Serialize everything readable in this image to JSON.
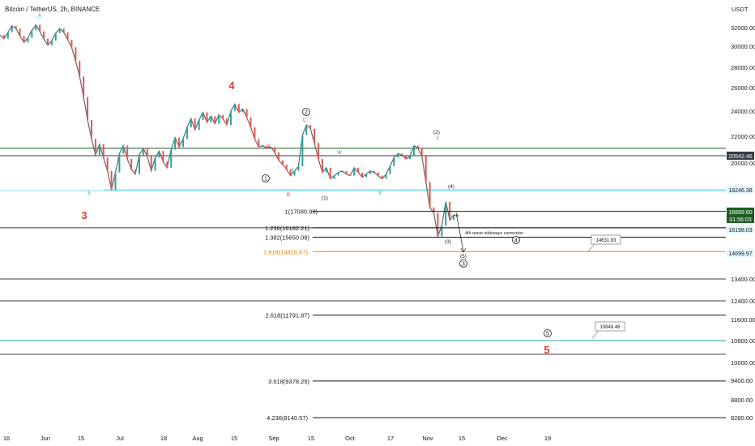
{
  "chart_data": {
    "type": "line",
    "title": "Bitcoin / TetherUS, 2h, BINANCE",
    "price_scale_label": "USDT",
    "x_ticks": [
      "16",
      "Jun",
      "15",
      "Jul",
      "18",
      "Aug",
      "15",
      "Sep",
      "15",
      "Oct",
      "17",
      "Nov",
      "15",
      "Dec",
      "19"
    ],
    "y_ticks": [
      "32000.00",
      "30000.00",
      "28000.00",
      "26000.00",
      "24000.00",
      "22000.00",
      "20000.00",
      "13400.00",
      "12400.00",
      "11600.00",
      "10800.00",
      "10000.00",
      "9400.00",
      "8800.00",
      "8280.00"
    ],
    "series": [
      {
        "values": [
          31200,
          30800,
          31500,
          32200,
          31900,
          31100,
          30400,
          30900,
          31700,
          32300,
          31600,
          30800,
          30100,
          30600,
          31400,
          31900,
          31500,
          30700,
          29900,
          28600,
          27100,
          25200,
          23300,
          21800,
          20600,
          21400,
          20400,
          19500,
          18300,
          19400,
          20700,
          21300,
          20300,
          19600,
          19300,
          20600,
          21100,
          20500,
          19500,
          20400,
          20900,
          20100,
          19700,
          21000,
          21900,
          21200,
          21800,
          22700,
          23400,
          22500,
          23300,
          23900,
          23100,
          23600,
          23000,
          23700,
          23400,
          22900,
          24000,
          24600,
          23900,
          24200,
          23500,
          22700,
          21800,
          21200,
          21300,
          21100,
          21200,
          20800,
          20200,
          19900,
          19600,
          19200,
          19500,
          19800,
          22100,
          22900,
          22600,
          21500,
          20300,
          19400,
          19700,
          19000,
          19200,
          19400,
          19500,
          19300,
          19200,
          19700,
          19400,
          19100,
          19300,
          19500,
          19400,
          19200,
          19000,
          19300,
          19800,
          20400,
          20700,
          20600,
          20300,
          20500,
          21300,
          21100,
          20500,
          18800,
          17300,
          17000,
          15700,
          16300,
          17600,
          16600,
          16900,
          16800
        ],
        "color": "#26a69a"
      }
    ],
    "waves": [
      "3",
      "4",
      "5"
    ],
    "wave_labels": [
      "1",
      "2",
      "(1)",
      "(2)",
      "(3)",
      "(4)",
      "(5)",
      "3",
      "4",
      "5",
      "A",
      "B",
      "C",
      "W",
      "X",
      "Y",
      "X",
      "Y",
      "5"
    ],
    "fib_levels": [
      {
        "label": "1(17080.90)",
        "value": 17080.9
      },
      {
        "label": "1.236(16182.21)",
        "value": 16182.21
      },
      {
        "label": "1.382(15650.08)",
        "value": 15650.08
      },
      {
        "label": "1.618(14826.67)",
        "value": 14826.67,
        "color": "#f57c00"
      },
      {
        "label": "2.618(11791.87)",
        "value": 11791.87
      },
      {
        "label": "3.618(9378.25)",
        "value": 9378.25
      },
      {
        "label": "4.236(8140.57)",
        "value": 8140.57
      }
    ],
    "horizontal_lines": [
      21100,
      20542.46,
      18246.38,
      16182.21,
      13400,
      12400,
      10800,
      10300
    ],
    "price_labels": [
      {
        "text": "20542.46",
        "bg": "#363a45"
      },
      {
        "text": "18246.38",
        "bg": "#e0f7fa"
      },
      {
        "text": "16889.60",
        "bg": "#1b5e20"
      },
      {
        "text": "01:56:03",
        "bg": "#1b5e20"
      },
      {
        "text": "16198.03",
        "bg": "#e0f7fa"
      },
      {
        "text": "14699.97",
        "bg": "#e0f7fa"
      }
    ],
    "callouts": [
      "14631.83",
      "10848.46"
    ],
    "annotation": "4th wave sideways correction",
    "colors": {
      "up": "#26a69a",
      "down": "#ef5350",
      "wave_red": "#e53935",
      "fib_orange": "#f57c00"
    }
  }
}
